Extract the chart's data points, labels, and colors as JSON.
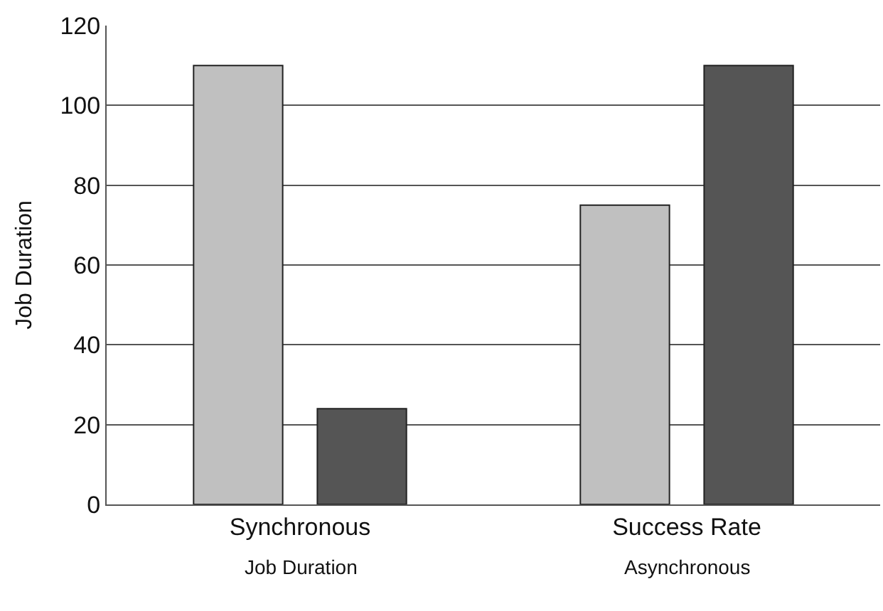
{
  "chart_data": {
    "type": "bar",
    "ylabel": "Job Duration",
    "categories": [
      "Synchronous",
      "Success Rate"
    ],
    "series": [
      {
        "color": "#c0c0c0",
        "values": [
          110,
          75
        ]
      },
      {
        "color": "#555555",
        "values": [
          24,
          110
        ]
      }
    ],
    "ylim": [
      0,
      120
    ],
    "yticks": [
      0,
      20,
      40,
      60,
      80,
      100,
      120
    ],
    "grid": "y",
    "annotations": [
      "Job Duration",
      "Asynchronous"
    ]
  }
}
